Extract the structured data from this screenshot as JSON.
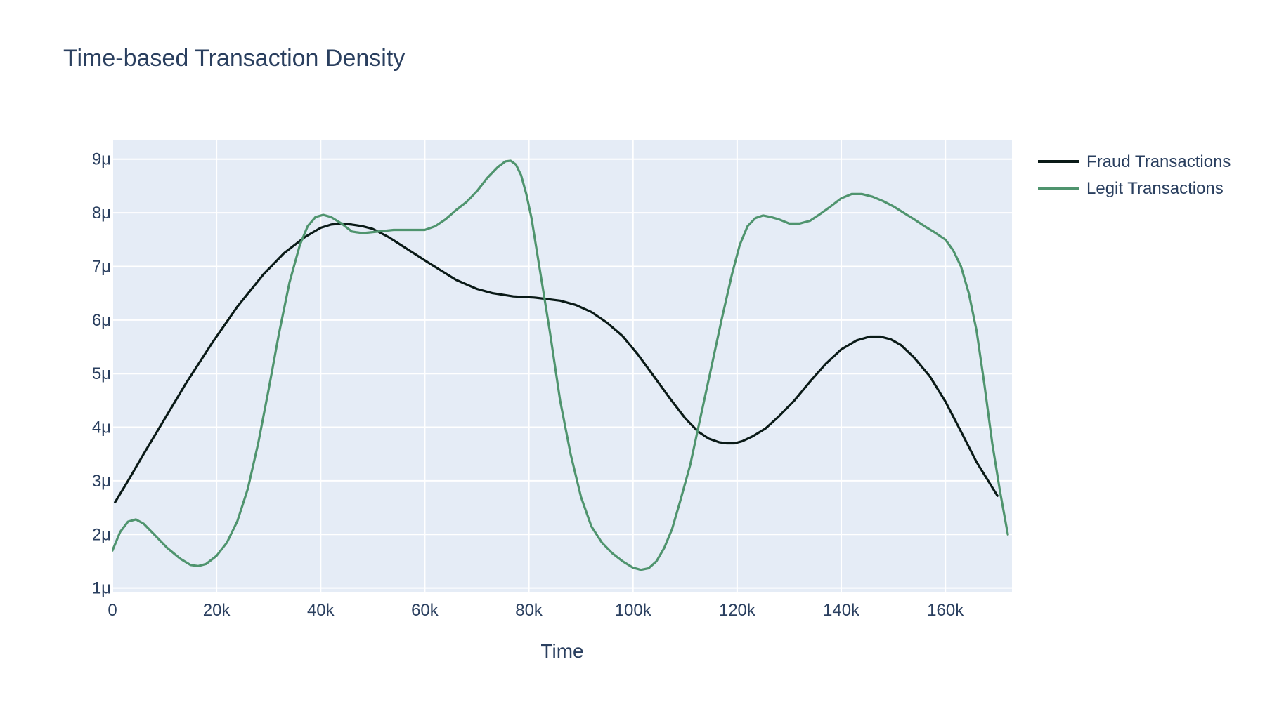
{
  "chart_data": {
    "type": "line",
    "title": "Time-based Transaction Density",
    "xlabel": "Time",
    "ylabel": "",
    "xlim": [
      0,
      172800
    ],
    "ylim": [
      9.3e-07,
      9.35e-06
    ],
    "x_ticks": [
      {
        "value": 0,
        "label": "0"
      },
      {
        "value": 20000,
        "label": "20k"
      },
      {
        "value": 40000,
        "label": "40k"
      },
      {
        "value": 60000,
        "label": "60k"
      },
      {
        "value": 80000,
        "label": "80k"
      },
      {
        "value": 100000,
        "label": "100k"
      },
      {
        "value": 120000,
        "label": "120k"
      },
      {
        "value": 140000,
        "label": "140k"
      },
      {
        "value": 160000,
        "label": "160k"
      }
    ],
    "y_ticks": [
      {
        "value": 1e-06,
        "label": "1μ"
      },
      {
        "value": 2e-06,
        "label": "2μ"
      },
      {
        "value": 3e-06,
        "label": "3μ"
      },
      {
        "value": 4e-06,
        "label": "4μ"
      },
      {
        "value": 5e-06,
        "label": "5μ"
      },
      {
        "value": 6e-06,
        "label": "6μ"
      },
      {
        "value": 7e-06,
        "label": "7μ"
      },
      {
        "value": 8e-06,
        "label": "8μ"
      },
      {
        "value": 9e-06,
        "label": "9μ"
      }
    ],
    "grid": true,
    "legend_position": "top-right, outside plot",
    "plot_background": "#e5ecf6",
    "series": [
      {
        "name": "Fraud Transactions",
        "color": "#0a1a17",
        "x": [
          500,
          3000,
          6000,
          10000,
          14000,
          19000,
          24000,
          29000,
          33000,
          37000,
          40000,
          42000,
          44000,
          46000,
          48000,
          50000,
          53000,
          57000,
          61000,
          66000,
          70000,
          73000,
          77000,
          81000,
          86000,
          89000,
          92000,
          95000,
          98000,
          101000,
          104000,
          107000,
          110000,
          112500,
          114500,
          116500,
          118000,
          119500,
          121000,
          123000,
          125500,
          128000,
          131000,
          134000,
          137000,
          140000,
          143000,
          145500,
          147500,
          149500,
          151500,
          154000,
          157000,
          160000,
          163000,
          166000,
          170000
        ],
        "y": [
          2.6e-06,
          3e-06,
          3.5e-06,
          4.15e-06,
          4.8e-06,
          5.55e-06,
          6.25e-06,
          6.85e-06,
          7.25e-06,
          7.55e-06,
          7.72e-06,
          7.78e-06,
          7.8e-06,
          7.78e-06,
          7.75e-06,
          7.7e-06,
          7.55e-06,
          7.3e-06,
          7.05e-06,
          6.75e-06,
          6.58e-06,
          6.5e-06,
          6.44e-06,
          6.42e-06,
          6.36e-06,
          6.28e-06,
          6.15e-06,
          5.95e-06,
          5.7e-06,
          5.35e-06,
          4.95e-06,
          4.55e-06,
          4.17e-06,
          3.92e-06,
          3.79e-06,
          3.72e-06,
          3.7e-06,
          3.7e-06,
          3.74e-06,
          3.83e-06,
          3.98e-06,
          4.2e-06,
          4.5e-06,
          4.85e-06,
          5.18e-06,
          5.45e-06,
          5.62e-06,
          5.69e-06,
          5.69e-06,
          5.64e-06,
          5.53e-06,
          5.3e-06,
          4.95e-06,
          4.48e-06,
          3.92e-06,
          3.35e-06,
          2.72e-06
        ]
      },
      {
        "name": "Legit Transactions",
        "color": "#4f946e",
        "x": [
          0,
          1500,
          3000,
          4500,
          6000,
          8000,
          10500,
          13000,
          15000,
          16500,
          18000,
          20000,
          22000,
          24000,
          26000,
          28000,
          30000,
          32000,
          34000,
          36000,
          37500,
          39000,
          40500,
          42000,
          44000,
          46000,
          48000,
          50000,
          54000,
          58000,
          60000,
          62000,
          64000,
          66000,
          68000,
          70000,
          72000,
          74000,
          75500,
          76500,
          77500,
          78500,
          79500,
          80500,
          82000,
          84000,
          86000,
          88000,
          90000,
          92000,
          94000,
          96000,
          98000,
          100000,
          101500,
          103000,
          104500,
          106000,
          107500,
          109000,
          111000,
          113000,
          115000,
          117000,
          119000,
          120500,
          122000,
          123500,
          125000,
          126500,
          128000,
          130000,
          132000,
          134000,
          136000,
          138000,
          140000,
          142000,
          144000,
          146000,
          148000,
          150000,
          152000,
          154000,
          156000,
          158000,
          160000,
          161500,
          163000,
          164500,
          166000,
          167500,
          169000,
          170500,
          172000
        ],
        "y": [
          1.7e-06,
          2.05e-06,
          2.24e-06,
          2.28e-06,
          2.2e-06,
          2e-06,
          1.75e-06,
          1.55e-06,
          1.43e-06,
          1.41e-06,
          1.45e-06,
          1.6e-06,
          1.85e-06,
          2.25e-06,
          2.85e-06,
          3.7e-06,
          4.7e-06,
          5.75e-06,
          6.7e-06,
          7.4e-06,
          7.75e-06,
          7.92e-06,
          7.96e-06,
          7.92e-06,
          7.8e-06,
          7.65e-06,
          7.62e-06,
          7.64e-06,
          7.68e-06,
          7.68e-06,
          7.68e-06,
          7.75e-06,
          7.88e-06,
          8.05e-06,
          8.2e-06,
          8.4e-06,
          8.65e-06,
          8.85e-06,
          8.96e-06,
          8.97e-06,
          8.9e-06,
          8.7e-06,
          8.35e-06,
          7.9e-06,
          7e-06,
          5.8e-06,
          4.5e-06,
          3.5e-06,
          2.7e-06,
          2.15e-06,
          1.85e-06,
          1.65e-06,
          1.5e-06,
          1.38e-06,
          1.34e-06,
          1.37e-06,
          1.5e-06,
          1.75e-06,
          2.1e-06,
          2.6e-06,
          3.3e-06,
          4.2e-06,
          5.1e-06,
          6e-06,
          6.85e-06,
          7.4e-06,
          7.75e-06,
          7.9e-06,
          7.95e-06,
          7.92e-06,
          7.88e-06,
          7.8e-06,
          7.8e-06,
          7.85e-06,
          7.98e-06,
          8.12e-06,
          8.27e-06,
          8.35e-06,
          8.35e-06,
          8.3e-06,
          8.22e-06,
          8.12e-06,
          8e-06,
          7.88e-06,
          7.75e-06,
          7.63e-06,
          7.5e-06,
          7.3e-06,
          7e-06,
          6.5e-06,
          5.8e-06,
          4.8e-06,
          3.7e-06,
          2.8e-06,
          2e-06
        ]
      }
    ]
  }
}
